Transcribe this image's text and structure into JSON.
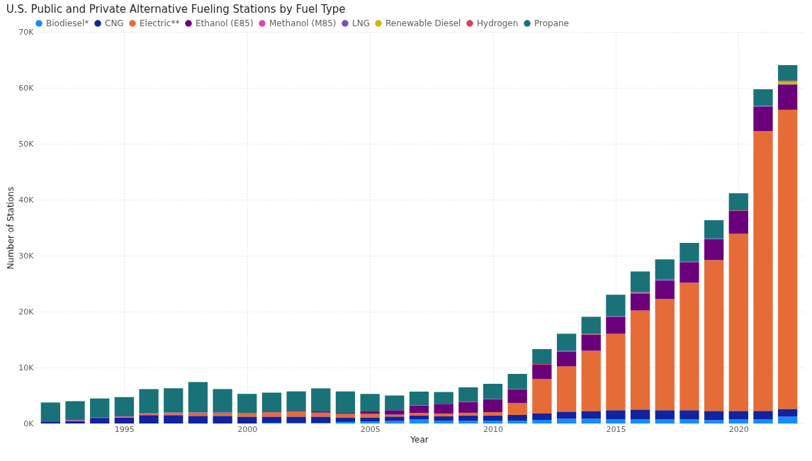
{
  "chart_data": {
    "type": "bar",
    "stacked": true,
    "title": "U.S. Public and Private Alternative Fueling Stations by Fuel Type",
    "xlabel": "Year",
    "ylabel": "Number of Stations",
    "x": [
      1992,
      1993,
      1994,
      1995,
      1996,
      1997,
      1998,
      1999,
      2000,
      2001,
      2002,
      2003,
      2004,
      2005,
      2006,
      2007,
      2008,
      2009,
      2010,
      2011,
      2012,
      2013,
      2014,
      2015,
      2016,
      2017,
      2018,
      2019,
      2020,
      2021,
      2022
    ],
    "xlim": [
      1991.5,
      2022.5
    ],
    "xticks": [
      1995,
      2000,
      2005,
      2010,
      2015,
      2020
    ],
    "ylim": [
      0,
      70000
    ],
    "yticks": [
      {
        "value": 0,
        "label": "0K"
      },
      {
        "value": 10000,
        "label": "10K"
      },
      {
        "value": 20000,
        "label": "20K"
      },
      {
        "value": 30000,
        "label": "30K"
      },
      {
        "value": 40000,
        "label": "40K"
      },
      {
        "value": 50000,
        "label": "50K"
      },
      {
        "value": 60000,
        "label": "60K"
      },
      {
        "value": 70000,
        "label": "70K"
      }
    ],
    "grid": true,
    "legend": "top left",
    "series": [
      {
        "name": "Biodiesel*",
        "color": "#118dff",
        "values": [
          null,
          null,
          null,
          null,
          null,
          null,
          null,
          null,
          null,
          130,
          90,
          90,
          270,
          360,
          450,
          760,
          510,
          510,
          510,
          510,
          630,
          840,
          840,
          720,
          720,
          720,
          720,
          590,
          720,
          720,
          1220
        ]
      },
      {
        "name": "CNG",
        "color": "#12239e",
        "values": [
          360,
          450,
          990,
          1080,
          1490,
          1490,
          1360,
          1360,
          1220,
          1090,
          1130,
          1130,
          810,
          720,
          770,
          630,
          760,
          890,
          890,
          1010,
          1140,
          1270,
          1390,
          1650,
          1770,
          1650,
          1650,
          1650,
          1520,
          1520,
          1390
        ]
      },
      {
        "name": "Electric**",
        "color": "#e66c37",
        "values": [
          null,
          null,
          null,
          100,
          180,
          230,
          410,
          410,
          680,
          770,
          900,
          720,
          630,
          630,
          360,
          510,
          510,
          510,
          630,
          2150,
          6200,
          8100,
          10760,
          13670,
          17720,
          19880,
          22790,
          26970,
          31690,
          50050,
          53470
        ]
      },
      {
        "name": "Ethanol (E85)",
        "color": "#6b007b",
        "values": [
          null,
          null,
          90,
          null,
          null,
          null,
          null,
          null,
          null,
          135,
          135,
          225,
          180,
          450,
          800,
          1310,
          1730,
          1940,
          2320,
          2410,
          2530,
          2660,
          2910,
          3040,
          3040,
          3290,
          3670,
          3720,
          4050,
          4300,
          4430
        ]
      },
      {
        "name": "Methanol (M85)",
        "color": "#e044a7",
        "values": [
          null,
          150,
          null,
          100,
          135,
          230,
          180,
          180,
          null,
          null,
          null,
          null,
          null,
          null,
          null,
          null,
          null,
          null,
          null,
          null,
          null,
          null,
          null,
          null,
          null,
          null,
          null,
          null,
          null,
          null,
          null
        ]
      },
      {
        "name": "LNG",
        "color": "#744ec2",
        "values": [
          null,
          null,
          null,
          null,
          null,
          null,
          null,
          null,
          null,
          null,
          null,
          null,
          null,
          null,
          null,
          80,
          null,
          80,
          80,
          null,
          null,
          130,
          null,
          130,
          110,
          250,
          130,
          130,
          null,
          130,
          130
        ]
      },
      {
        "name": "Renewable Diesel",
        "color": "#d9b300",
        "values": [
          null,
          null,
          null,
          null,
          null,
          null,
          null,
          null,
          null,
          null,
          null,
          null,
          null,
          null,
          null,
          null,
          null,
          null,
          null,
          null,
          null,
          null,
          null,
          null,
          null,
          null,
          null,
          null,
          null,
          null,
          510
        ]
      },
      {
        "name": "Hydrogen",
        "color": "#d64550",
        "values": [
          null,
          null,
          null,
          null,
          null,
          null,
          null,
          null,
          null,
          null,
          null,
          null,
          null,
          null,
          null,
          null,
          null,
          null,
          null,
          80,
          130,
          null,
          130,
          null,
          100,
          null,
          null,
          null,
          100,
          80,
          130
        ]
      },
      {
        "name": "Propane",
        "color": "#197278",
        "values": [
          3390,
          3390,
          3390,
          3440,
          4340,
          4340,
          5470,
          4200,
          3390,
          3390,
          3480,
          4110,
          3840,
          3120,
          2620,
          2410,
          2110,
          2530,
          2660,
          2700,
          2660,
          3040,
          3040,
          3800,
          3710,
          3540,
          3320,
          3280,
          3070,
          2960,
          2780
        ]
      }
    ]
  }
}
